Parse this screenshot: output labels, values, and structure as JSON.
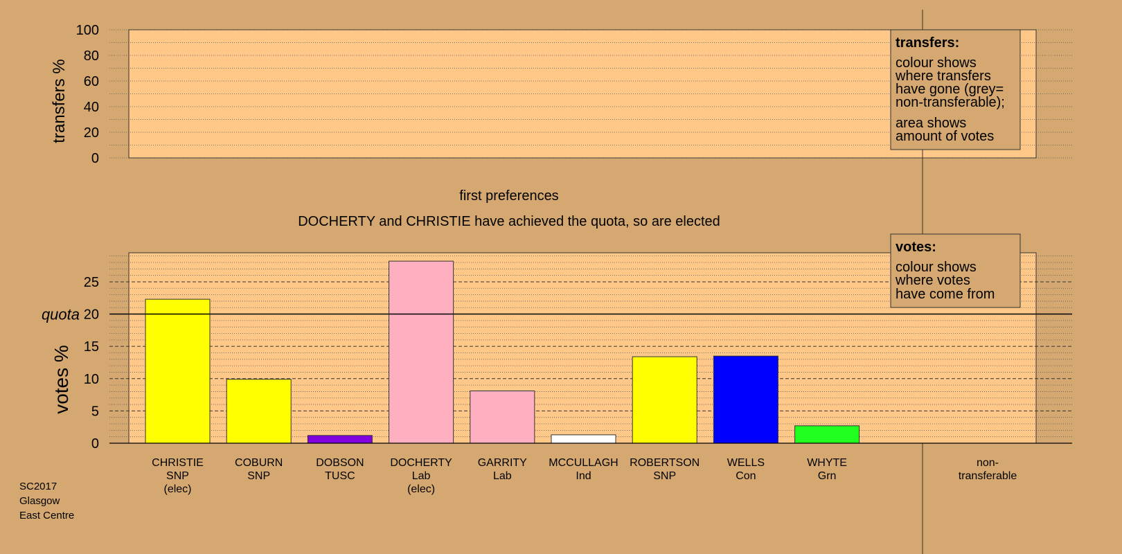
{
  "transfers_panel": {
    "ylabel": "transfers %",
    "ylim": [
      0,
      100
    ],
    "yticks": [
      0,
      20,
      40,
      60,
      80,
      100
    ],
    "legend": {
      "title": "transfers:",
      "lines1": [
        "colour shows",
        "where transfers",
        "have gone (grey=",
        "non-transferable);"
      ],
      "lines2": [
        "area shows",
        "amount of votes"
      ]
    }
  },
  "stage_title": "first preferences",
  "stage_note": "DOCHERTY and CHRISTIE have achieved the quota, so are elected",
  "chart_data": {
    "type": "bar",
    "ylabel": "votes %",
    "ylim": [
      0,
      29.5
    ],
    "yticks": [
      0,
      5,
      10,
      15,
      20,
      25
    ],
    "quota": {
      "value": 20,
      "label": "quota"
    },
    "categories": [
      {
        "name": "CHRISTIE",
        "party": "SNP",
        "status": "(elec)",
        "value": 22.3,
        "color": "#ffff00"
      },
      {
        "name": "COBURN",
        "party": "SNP",
        "status": "",
        "value": 9.9,
        "color": "#ffff00"
      },
      {
        "name": "DOBSON",
        "party": "TUSC",
        "status": "",
        "value": 1.2,
        "color": "#8000e0"
      },
      {
        "name": "DOCHERTY",
        "party": "Lab",
        "status": "(elec)",
        "value": 28.2,
        "color": "#ffb0c0"
      },
      {
        "name": "GARRITY",
        "party": "Lab",
        "status": "",
        "value": 8.1,
        "color": "#ffb0c0"
      },
      {
        "name": "MCCULLAGH",
        "party": "Ind",
        "status": "",
        "value": 1.3,
        "color": "#ffffff"
      },
      {
        "name": "ROBERTSON",
        "party": "SNP",
        "status": "",
        "value": 13.4,
        "color": "#ffff00"
      },
      {
        "name": "WELLS",
        "party": "Con",
        "status": "",
        "value": 13.5,
        "color": "#0000ff"
      },
      {
        "name": "WHYTE",
        "party": "Grn",
        "status": "",
        "value": 2.7,
        "color": "#20ff20"
      }
    ],
    "nontransferable": {
      "lines": [
        "non-",
        "transferable"
      ]
    },
    "legend": {
      "title": "votes:",
      "lines": [
        "colour shows",
        "where votes",
        "have come from"
      ]
    }
  },
  "footnote": {
    "lines": [
      "SC2017",
      "Glasgow",
      "East Centre"
    ]
  },
  "colors": {
    "background": "#d5a871",
    "panel": "#ffc889"
  }
}
